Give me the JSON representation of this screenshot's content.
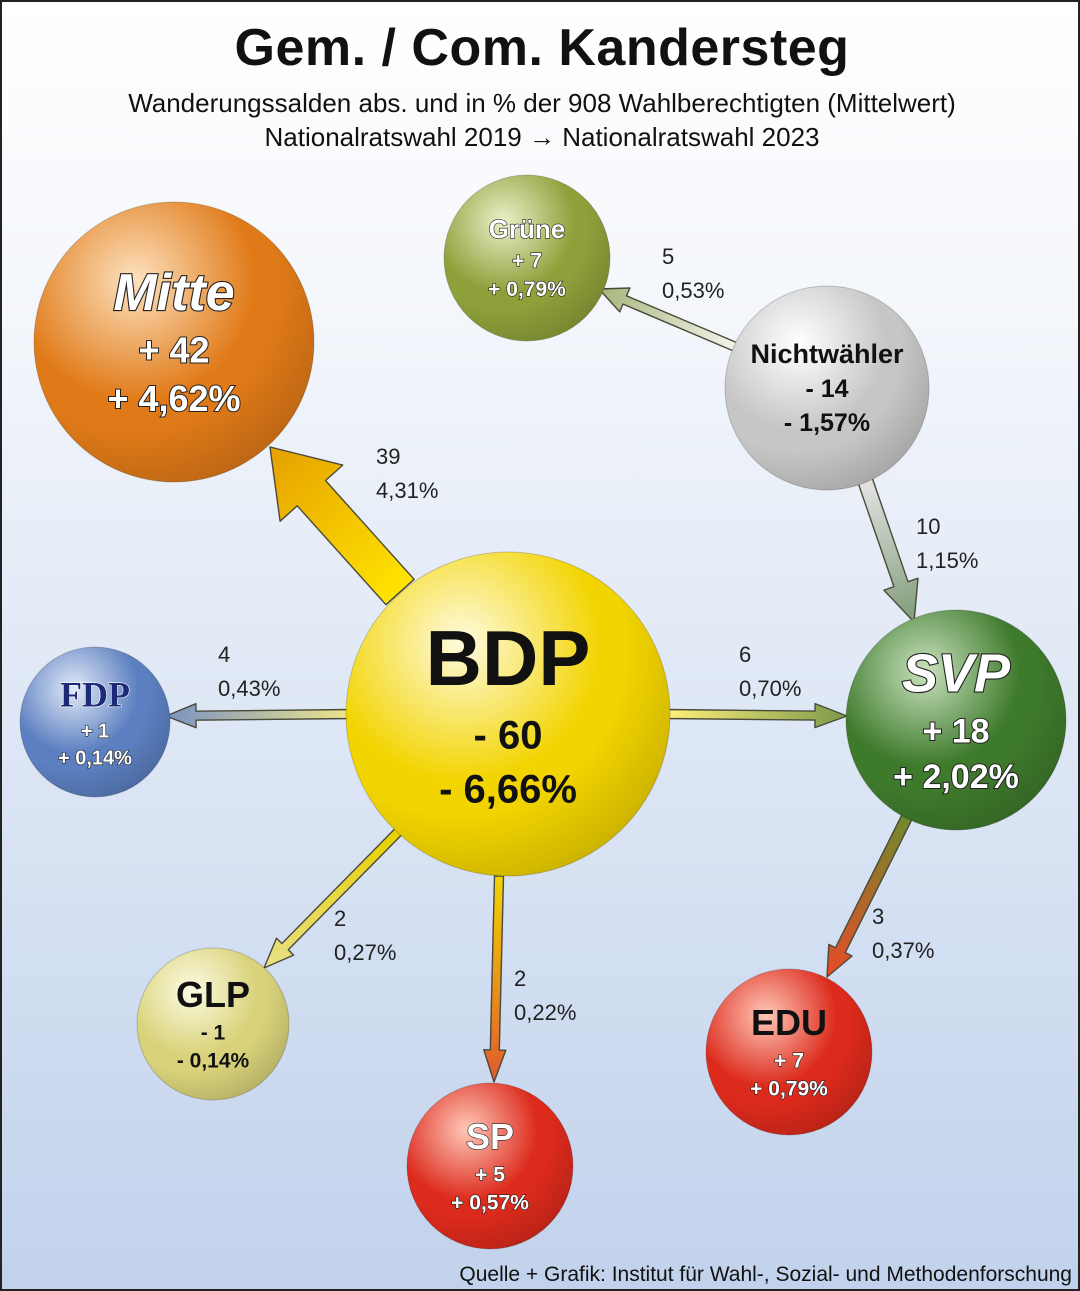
{
  "header": {
    "title": "Gem. / Com. Kandersteg",
    "subtitle1": "Wanderungssalden abs. und in % der 908 Wahlberechtigten (Mittelwert)",
    "subtitle2": "Nationalratswahl 2019 → Nationalratswahl 2023"
  },
  "source": "Quelle + Grafik: Institut für Wahl-, Sozial- und Methodenforschung",
  "parties": [
    {
      "id": "bdp",
      "name": "BDP",
      "abs": "- 60",
      "pct": "- 6,66%",
      "color": "#f2d400",
      "light": "#fffbe0",
      "name_style": "plain"
    },
    {
      "id": "mitte",
      "name": "Mitte",
      "abs": "+ 42",
      "pct": "+ 4,62%",
      "color": "#e07a18",
      "light": "#fde2bf",
      "name_style": "outline-italic"
    },
    {
      "id": "gruene",
      "name": "Grüne",
      "abs": "+ 7",
      "pct": "+ 0,79%",
      "color": "#8ea03a",
      "light": "#eaf0c8",
      "name_style": "outline"
    },
    {
      "id": "nichtwaehler",
      "name": "Nichtwähler",
      "abs": "- 14",
      "pct": "- 1,57%",
      "color": "#c6c6c6",
      "light": "#ffffff",
      "name_style": "plain"
    },
    {
      "id": "svp",
      "name": "SVP",
      "abs": "+ 18",
      "pct": "+ 2,02%",
      "color": "#3e7a2c",
      "light": "#c9e2bd",
      "name_style": "outline-italic"
    },
    {
      "id": "fdp",
      "name": "FDP",
      "abs": "+ 1",
      "pct": "+ 0,14%",
      "color": "#5b7fc0",
      "light": "#e2eaf8",
      "name_style": "serif-navy"
    },
    {
      "id": "glp",
      "name": "GLP",
      "abs": "- 1",
      "pct": "- 0,14%",
      "color": "#d9d27a",
      "light": "#fcfbe2",
      "name_style": "plain"
    },
    {
      "id": "sp",
      "name": "SP",
      "abs": "+ 5",
      "pct": "+ 0,57%",
      "color": "#dc2a1c",
      "light": "#ffc8b8",
      "name_style": "outline"
    },
    {
      "id": "edu",
      "name": "EDU",
      "abs": "+ 7",
      "pct": "+ 0,79%",
      "color": "#dc2a1c",
      "light": "#ffc8b8",
      "name_style": "plain"
    }
  ],
  "flows": [
    {
      "from": "bdp",
      "to": "mitte",
      "value": "39",
      "pct": "4,31%"
    },
    {
      "from": "nichtwaehler",
      "to": "gruene",
      "value": "5",
      "pct": "0,53%"
    },
    {
      "from": "nichtwaehler",
      "to": "svp",
      "value": "10",
      "pct": "1,15%"
    },
    {
      "from": "bdp",
      "to": "fdp",
      "value": "4",
      "pct": "0,43%"
    },
    {
      "from": "bdp",
      "to": "svp",
      "value": "6",
      "pct": "0,70%"
    },
    {
      "from": "bdp",
      "to": "glp",
      "value": "2",
      "pct": "0,27%"
    },
    {
      "from": "bdp",
      "to": "sp",
      "value": "2",
      "pct": "0,22%"
    },
    {
      "from": "svp",
      "to": "edu",
      "value": "3",
      "pct": "0,37%"
    }
  ]
}
